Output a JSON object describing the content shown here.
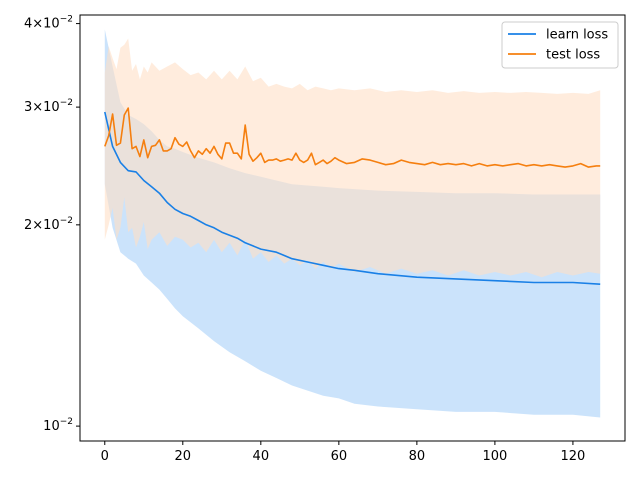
{
  "chart_data": {
    "type": "line",
    "title": "",
    "xlabel": "",
    "ylabel": "",
    "yscale": "log",
    "xlim": [
      -6.35,
      133.35
    ],
    "ylim": [
      0.0095,
      0.0412
    ],
    "grid": false,
    "legend_position": "top-right",
    "x_ticks": [
      0,
      20,
      40,
      60,
      80,
      100,
      120
    ],
    "x_tick_labels": [
      "0",
      "20",
      "40",
      "60",
      "80",
      "100",
      "120"
    ],
    "y_ticks": [
      0.01,
      0.02,
      0.03,
      0.04
    ],
    "y_tick_labels": [
      {
        "mantissa": "",
        "exp": "−2"
      },
      {
        "mantissa": "2",
        "exp": "−2"
      },
      {
        "mantissa": "3",
        "exp": "−2"
      },
      {
        "mantissa": "4",
        "exp": "−2"
      }
    ],
    "series": [
      {
        "name": "learn loss",
        "color": "#1f77b4",
        "line_color": "#1a80e6",
        "band_color": "#a8d0f9",
        "mean": [
          [
            0,
            0.0295
          ],
          [
            2,
            0.0262
          ],
          [
            4,
            0.0248
          ],
          [
            6,
            0.0241
          ],
          [
            8,
            0.024
          ],
          [
            10,
            0.0233
          ],
          [
            12,
            0.0228
          ],
          [
            14,
            0.0223
          ],
          [
            16,
            0.0216
          ],
          [
            18,
            0.0211
          ],
          [
            20,
            0.0208
          ],
          [
            22,
            0.0206
          ],
          [
            24,
            0.0203
          ],
          [
            26,
            0.02
          ],
          [
            28,
            0.0198
          ],
          [
            30,
            0.0195
          ],
          [
            32,
            0.0193
          ],
          [
            34,
            0.0191
          ],
          [
            36,
            0.0188
          ],
          [
            38,
            0.0186
          ],
          [
            40,
            0.0184
          ],
          [
            44,
            0.0182
          ],
          [
            48,
            0.0178
          ],
          [
            52,
            0.0176
          ],
          [
            56,
            0.0174
          ],
          [
            60,
            0.0172
          ],
          [
            64,
            0.0171
          ],
          [
            70,
            0.0169
          ],
          [
            80,
            0.0167
          ],
          [
            90,
            0.0166
          ],
          [
            100,
            0.0165
          ],
          [
            110,
            0.0164
          ],
          [
            120,
            0.0164
          ],
          [
            127,
            0.0163
          ]
        ],
        "upper": [
          [
            0,
            0.0392
          ],
          [
            2,
            0.0345
          ],
          [
            4,
            0.0305
          ],
          [
            6,
            0.0292
          ],
          [
            8,
            0.0288
          ],
          [
            10,
            0.0283
          ],
          [
            12,
            0.0276
          ],
          [
            14,
            0.0268
          ],
          [
            16,
            0.0262
          ],
          [
            18,
            0.026
          ],
          [
            20,
            0.0257
          ],
          [
            24,
            0.0252
          ],
          [
            28,
            0.0248
          ],
          [
            32,
            0.0243
          ],
          [
            36,
            0.0239
          ],
          [
            40,
            0.0236
          ],
          [
            44,
            0.0233
          ],
          [
            48,
            0.023
          ],
          [
            52,
            0.0229
          ],
          [
            56,
            0.0228
          ],
          [
            60,
            0.0227
          ],
          [
            70,
            0.0225
          ],
          [
            80,
            0.0224
          ],
          [
            90,
            0.0223
          ],
          [
            100,
            0.0223
          ],
          [
            110,
            0.0222
          ],
          [
            120,
            0.0222
          ],
          [
            127,
            0.0222
          ]
        ],
        "lower": [
          [
            0,
            0.023
          ],
          [
            2,
            0.0198
          ],
          [
            4,
            0.0182
          ],
          [
            6,
            0.0178
          ],
          [
            8,
            0.0175
          ],
          [
            10,
            0.0168
          ],
          [
            12,
            0.0164
          ],
          [
            14,
            0.016
          ],
          [
            16,
            0.0155
          ],
          [
            18,
            0.015
          ],
          [
            20,
            0.0146
          ],
          [
            24,
            0.014
          ],
          [
            28,
            0.0134
          ],
          [
            32,
            0.0129
          ],
          [
            36,
            0.0125
          ],
          [
            40,
            0.0121
          ],
          [
            44,
            0.0118
          ],
          [
            48,
            0.0115
          ],
          [
            52,
            0.0113
          ],
          [
            56,
            0.0111
          ],
          [
            60,
            0.011
          ],
          [
            64,
            0.0108
          ],
          [
            70,
            0.0107
          ],
          [
            80,
            0.0106
          ],
          [
            90,
            0.0105
          ],
          [
            100,
            0.0105
          ],
          [
            110,
            0.0104
          ],
          [
            120,
            0.0104
          ],
          [
            127,
            0.0103
          ]
        ]
      },
      {
        "name": "test loss",
        "color": "#ff7f0e",
        "line_color": "#f57f0f",
        "band_color": "#ffe0c6",
        "mean": [
          [
            0,
            0.0262
          ],
          [
            1,
            0.0272
          ],
          [
            2,
            0.0293
          ],
          [
            3,
            0.0263
          ],
          [
            4,
            0.0265
          ],
          [
            5,
            0.0292
          ],
          [
            6,
            0.0299
          ],
          [
            7,
            0.026
          ],
          [
            8,
            0.0262
          ],
          [
            9,
            0.0253
          ],
          [
            10,
            0.0268
          ],
          [
            11,
            0.0252
          ],
          [
            12,
            0.0262
          ],
          [
            13,
            0.0263
          ],
          [
            14,
            0.0268
          ],
          [
            15,
            0.0258
          ],
          [
            16,
            0.0258
          ],
          [
            17,
            0.026
          ],
          [
            18,
            0.027
          ],
          [
            19,
            0.0264
          ],
          [
            20,
            0.0262
          ],
          [
            21,
            0.0266
          ],
          [
            22,
            0.0258
          ],
          [
            23,
            0.0252
          ],
          [
            24,
            0.0258
          ],
          [
            25,
            0.0255
          ],
          [
            26,
            0.026
          ],
          [
            27,
            0.0256
          ],
          [
            28,
            0.0262
          ],
          [
            29,
            0.0255
          ],
          [
            30,
            0.0251
          ],
          [
            31,
            0.0265
          ],
          [
            32,
            0.0265
          ],
          [
            33,
            0.0256
          ],
          [
            34,
            0.0256
          ],
          [
            35,
            0.0251
          ],
          [
            36,
            0.0282
          ],
          [
            37,
            0.0255
          ],
          [
            38,
            0.0249
          ],
          [
            39,
            0.0252
          ],
          [
            40,
            0.0256
          ],
          [
            41,
            0.0248
          ],
          [
            42,
            0.025
          ],
          [
            43,
            0.025
          ],
          [
            44,
            0.0251
          ],
          [
            45,
            0.0249
          ],
          [
            46,
            0.025
          ],
          [
            47,
            0.0251
          ],
          [
            48,
            0.025
          ],
          [
            49,
            0.0256
          ],
          [
            50,
            0.025
          ],
          [
            51,
            0.0248
          ],
          [
            52,
            0.025
          ],
          [
            53,
            0.0256
          ],
          [
            54,
            0.0246
          ],
          [
            55,
            0.0248
          ],
          [
            56,
            0.025
          ],
          [
            57,
            0.0247
          ],
          [
            58,
            0.0249
          ],
          [
            59,
            0.0252
          ],
          [
            60,
            0.025
          ],
          [
            62,
            0.0247
          ],
          [
            64,
            0.0248
          ],
          [
            66,
            0.0251
          ],
          [
            68,
            0.025
          ],
          [
            70,
            0.0248
          ],
          [
            72,
            0.0246
          ],
          [
            74,
            0.0247
          ],
          [
            76,
            0.025
          ],
          [
            78,
            0.0248
          ],
          [
            80,
            0.0247
          ],
          [
            82,
            0.0246
          ],
          [
            84,
            0.0248
          ],
          [
            86,
            0.0246
          ],
          [
            88,
            0.0247
          ],
          [
            90,
            0.0246
          ],
          [
            92,
            0.0247
          ],
          [
            94,
            0.0245
          ],
          [
            96,
            0.0247
          ],
          [
            98,
            0.0245
          ],
          [
            100,
            0.0246
          ],
          [
            102,
            0.0245
          ],
          [
            104,
            0.0246
          ],
          [
            106,
            0.0247
          ],
          [
            108,
            0.0245
          ],
          [
            110,
            0.0246
          ],
          [
            112,
            0.0245
          ],
          [
            114,
            0.0246
          ],
          [
            116,
            0.0245
          ],
          [
            118,
            0.0244
          ],
          [
            120,
            0.0245
          ],
          [
            122,
            0.0247
          ],
          [
            124,
            0.0244
          ],
          [
            126,
            0.0245
          ],
          [
            127,
            0.0245
          ]
        ],
        "upper": [
          [
            0,
            0.0338
          ],
          [
            1,
            0.037
          ],
          [
            2,
            0.0355
          ],
          [
            3,
            0.0342
          ],
          [
            4,
            0.0368
          ],
          [
            5,
            0.0372
          ],
          [
            6,
            0.038
          ],
          [
            7,
            0.034
          ],
          [
            8,
            0.0348
          ],
          [
            9,
            0.033
          ],
          [
            10,
            0.0345
          ],
          [
            11,
            0.0338
          ],
          [
            12,
            0.035
          ],
          [
            14,
            0.034
          ],
          [
            16,
            0.0345
          ],
          [
            18,
            0.035
          ],
          [
            20,
            0.0342
          ],
          [
            22,
            0.0335
          ],
          [
            24,
            0.0338
          ],
          [
            26,
            0.033
          ],
          [
            28,
            0.034
          ],
          [
            30,
            0.033
          ],
          [
            32,
            0.034
          ],
          [
            34,
            0.033
          ],
          [
            36,
            0.0345
          ],
          [
            38,
            0.0328
          ],
          [
            40,
            0.0332
          ],
          [
            42,
            0.0322
          ],
          [
            44,
            0.0325
          ],
          [
            46,
            0.0322
          ],
          [
            48,
            0.032
          ],
          [
            50,
            0.0325
          ],
          [
            52,
            0.0318
          ],
          [
            54,
            0.0322
          ],
          [
            56,
            0.032
          ],
          [
            58,
            0.0318
          ],
          [
            60,
            0.032
          ],
          [
            64,
            0.0318
          ],
          [
            68,
            0.032
          ],
          [
            72,
            0.0316
          ],
          [
            76,
            0.0318
          ],
          [
            80,
            0.0316
          ],
          [
            84,
            0.0318
          ],
          [
            88,
            0.0315
          ],
          [
            92,
            0.0317
          ],
          [
            96,
            0.0315
          ],
          [
            100,
            0.0316
          ],
          [
            104,
            0.0315
          ],
          [
            108,
            0.0316
          ],
          [
            112,
            0.0315
          ],
          [
            116,
            0.0314
          ],
          [
            120,
            0.0315
          ],
          [
            124,
            0.0314
          ],
          [
            127,
            0.0318
          ]
        ],
        "lower": [
          [
            0,
            0.019
          ],
          [
            1,
            0.02
          ],
          [
            2,
            0.0212
          ],
          [
            3,
            0.019
          ],
          [
            4,
            0.0198
          ],
          [
            5,
            0.022
          ],
          [
            6,
            0.0195
          ],
          [
            7,
            0.0198
          ],
          [
            8,
            0.0185
          ],
          [
            9,
            0.0192
          ],
          [
            10,
            0.0202
          ],
          [
            11,
            0.0184
          ],
          [
            12,
            0.019
          ],
          [
            14,
            0.0195
          ],
          [
            16,
            0.0186
          ],
          [
            18,
            0.0192
          ],
          [
            20,
            0.019
          ],
          [
            22,
            0.0185
          ],
          [
            24,
            0.0188
          ],
          [
            26,
            0.0182
          ],
          [
            28,
            0.019
          ],
          [
            30,
            0.0182
          ],
          [
            32,
            0.0188
          ],
          [
            34,
            0.018
          ],
          [
            36,
            0.019
          ],
          [
            38,
            0.0178
          ],
          [
            40,
            0.0182
          ],
          [
            42,
            0.0176
          ],
          [
            44,
            0.018
          ],
          [
            46,
            0.0175
          ],
          [
            48,
            0.0178
          ],
          [
            50,
            0.0174
          ],
          [
            52,
            0.0177
          ],
          [
            54,
            0.0172
          ],
          [
            56,
            0.0176
          ],
          [
            58,
            0.0172
          ],
          [
            60,
            0.0175
          ],
          [
            64,
            0.017
          ],
          [
            68,
            0.0173
          ],
          [
            72,
            0.0169
          ],
          [
            76,
            0.0172
          ],
          [
            80,
            0.0169
          ],
          [
            84,
            0.0171
          ],
          [
            88,
            0.0168
          ],
          [
            92,
            0.0171
          ],
          [
            96,
            0.0168
          ],
          [
            100,
            0.017
          ],
          [
            104,
            0.0168
          ],
          [
            108,
            0.017
          ],
          [
            112,
            0.0167
          ],
          [
            116,
            0.017
          ],
          [
            120,
            0.0168
          ],
          [
            124,
            0.017
          ],
          [
            127,
            0.0169
          ]
        ]
      }
    ]
  }
}
